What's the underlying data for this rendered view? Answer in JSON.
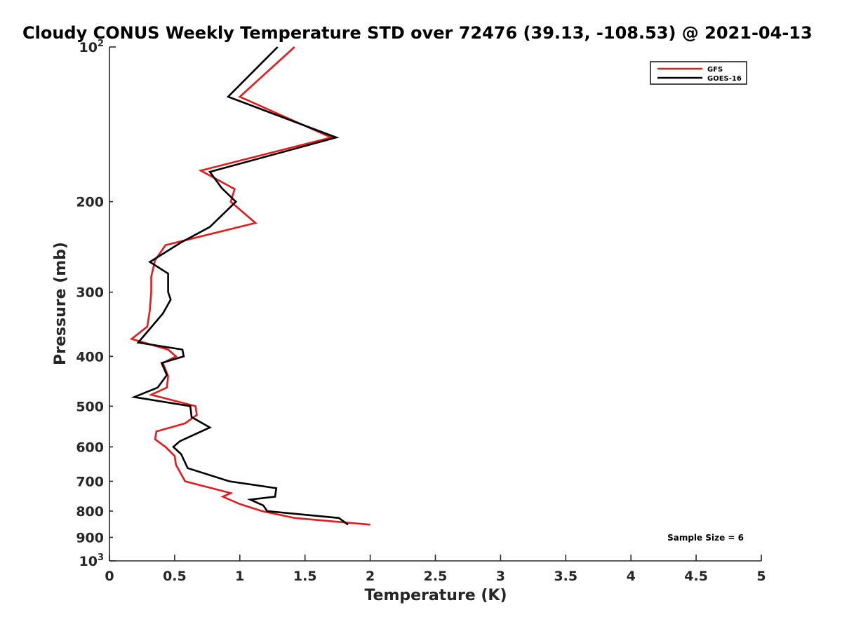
{
  "chart_data": {
    "type": "line",
    "title": "Cloudy CONUS Weekly Temperature STD over 72476 (39.13, -108.53) @ 2021-04-13",
    "xlabel": "Temperature (K)",
    "ylabel": "Pressure (mb)",
    "xlim": [
      0,
      5
    ],
    "ylim": [
      100,
      1000
    ],
    "y_scale": "log",
    "y_reversed": true,
    "grid": false,
    "legend_position": "top-right",
    "x_ticks": [
      "0",
      "0.5",
      "1",
      "1.5",
      "2",
      "2.5",
      "3",
      "3.5",
      "4",
      "4.5",
      "5"
    ],
    "x_tick_values": [
      0,
      0.5,
      1,
      1.5,
      2,
      2.5,
      3,
      3.5,
      4,
      4.5,
      5
    ],
    "y_ticks": [
      {
        "value": 100,
        "base": "10",
        "exp": "2"
      },
      {
        "value": 200,
        "label": "200"
      },
      {
        "value": 300,
        "label": "300"
      },
      {
        "value": 400,
        "label": "400"
      },
      {
        "value": 500,
        "label": "500"
      },
      {
        "value": 600,
        "label": "600"
      },
      {
        "value": 700,
        "label": "700"
      },
      {
        "value": 800,
        "label": "800"
      },
      {
        "value": 900,
        "label": "900"
      },
      {
        "value": 1000,
        "base": "10",
        "exp": "3"
      }
    ],
    "annotation": "Sample Size = 6",
    "series": [
      {
        "name": "GFS",
        "color": "#e41a1c",
        "points": [
          [
            1.42,
            100
          ],
          [
            1.0,
            125
          ],
          [
            1.7,
            150
          ],
          [
            0.7,
            174
          ],
          [
            0.96,
            189
          ],
          [
            0.93,
            200
          ],
          [
            1.12,
            220
          ],
          [
            0.43,
            243
          ],
          [
            0.35,
            260
          ],
          [
            0.32,
            280
          ],
          [
            0.32,
            300
          ],
          [
            0.31,
            325
          ],
          [
            0.29,
            350
          ],
          [
            0.17,
            370
          ],
          [
            0.45,
            388
          ],
          [
            0.51,
            400
          ],
          [
            0.41,
            412
          ],
          [
            0.45,
            437
          ],
          [
            0.44,
            460
          ],
          [
            0.32,
            475
          ],
          [
            0.66,
            500
          ],
          [
            0.67,
            520
          ],
          [
            0.58,
            540
          ],
          [
            0.36,
            560
          ],
          [
            0.35,
            580
          ],
          [
            0.43,
            600
          ],
          [
            0.5,
            625
          ],
          [
            0.51,
            650
          ],
          [
            0.58,
            700
          ],
          [
            0.93,
            738
          ],
          [
            0.87,
            750
          ],
          [
            1.0,
            775
          ],
          [
            1.17,
            800
          ],
          [
            1.42,
            825
          ],
          [
            2.0,
            850
          ]
        ]
      },
      {
        "name": "GOES-16",
        "color": "#000000",
        "points": [
          [
            1.29,
            100
          ],
          [
            0.91,
            125
          ],
          [
            1.74,
            150
          ],
          [
            0.77,
            175
          ],
          [
            0.86,
            188
          ],
          [
            0.97,
            200
          ],
          [
            0.77,
            224
          ],
          [
            0.55,
            240
          ],
          [
            0.31,
            262
          ],
          [
            0.45,
            276
          ],
          [
            0.45,
            300
          ],
          [
            0.47,
            310
          ],
          [
            0.41,
            330
          ],
          [
            0.22,
            376
          ],
          [
            0.56,
            388
          ],
          [
            0.57,
            400
          ],
          [
            0.4,
            412
          ],
          [
            0.44,
            435
          ],
          [
            0.37,
            460
          ],
          [
            0.19,
            480
          ],
          [
            0.62,
            500
          ],
          [
            0.63,
            525
          ],
          [
            0.77,
            550
          ],
          [
            0.54,
            585
          ],
          [
            0.49,
            600
          ],
          [
            0.55,
            620
          ],
          [
            0.6,
            660
          ],
          [
            0.92,
            700
          ],
          [
            1.28,
            722
          ],
          [
            1.27,
            750
          ],
          [
            1.08,
            760
          ],
          [
            1.18,
            780
          ],
          [
            1.21,
            800
          ],
          [
            1.76,
            825
          ],
          [
            1.83,
            850
          ]
        ]
      }
    ]
  }
}
